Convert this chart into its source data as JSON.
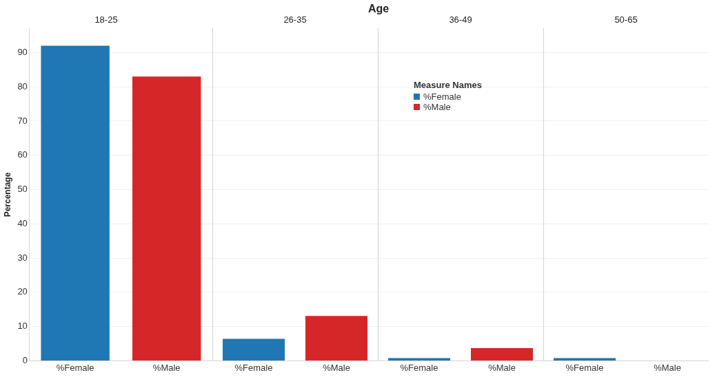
{
  "chart_data": [
    {
      "type": "bar",
      "title": "18-25",
      "annotations": [
        "Age"
      ],
      "ylabel": "Percentage",
      "categories": [
        "%Female",
        "%Male"
      ],
      "stacked": true,
      "series": [
        {
          "color": "#1f77b4",
          "values": [
            92,
            null
          ]
        },
        {
          "color": "#d62728",
          "values": [
            null,
            83
          ]
        }
      ],
      "ylim": [
        0,
        97
      ],
      "yticks": [
        0,
        10,
        20,
        30,
        40,
        50,
        60,
        70,
        80,
        90
      ],
      "grid": "y"
    },
    {
      "type": "bar",
      "title": "26-35",
      "categories": [
        "%Female",
        "%Male"
      ],
      "stacked": true,
      "series": [
        {
          "color": "#1f77b4",
          "values": [
            6.4,
            null
          ]
        },
        {
          "color": "#d62728",
          "values": [
            null,
            13.1
          ]
        }
      ],
      "ylim": [
        0,
        97
      ],
      "yticks": [
        0,
        10,
        20,
        30,
        40,
        50,
        60,
        70,
        80,
        90
      ],
      "grid": "y",
      "tick_labels": "x"
    },
    {
      "type": "bar",
      "title": "36-49",
      "categories": [
        "%Female",
        "%Male"
      ],
      "stacked": true,
      "legend": "top left",
      "legend_title": "Measure Names",
      "series": [
        {
          "name": "%Female",
          "color": "#1f77b4",
          "values": [
            0.8,
            null
          ]
        },
        {
          "name": "%Male",
          "color": "#d62728",
          "values": [
            null,
            3.7
          ]
        }
      ],
      "ylim": [
        0,
        97
      ],
      "yticks": [
        0,
        10,
        20,
        30,
        40,
        50,
        60,
        70,
        80,
        90
      ],
      "grid": "y",
      "tick_labels": "x"
    },
    {
      "type": "bar",
      "title": "50-65",
      "categories": [
        "%Female",
        "%Male"
      ],
      "stacked": true,
      "series": [
        {
          "color": "#1f77b4",
          "values": [
            0.8,
            null
          ]
        },
        {
          "color": "#d62728",
          "values": [
            null,
            null
          ]
        }
      ],
      "ylim": [
        0,
        97
      ],
      "yticks": [
        0,
        10,
        20,
        30,
        40,
        50,
        60,
        70,
        80,
        90
      ],
      "grid": "y",
      "tick_labels": "x"
    }
  ]
}
